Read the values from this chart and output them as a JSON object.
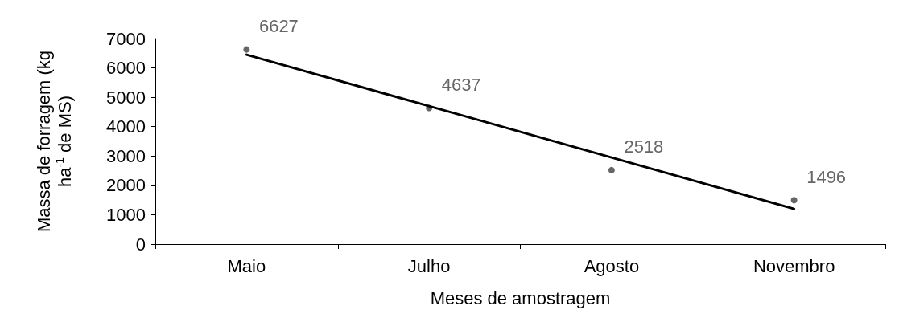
{
  "chart_data": {
    "type": "scatter",
    "xlabel": "Meses de amostragem",
    "ylabel": "Massa de forragem (kg ha$^{-1}$ de MS)",
    "categories": [
      "Maio",
      "Julho",
      "Agosto",
      "Novembro"
    ],
    "marker": "circle",
    "ylim": [
      0,
      7000
    ],
    "yticks": [
      0,
      1000,
      2000,
      3000,
      4000,
      5000,
      6000,
      7000
    ],
    "series": [
      {
        "color": "#404040",
        "values": [
          6627,
          4637,
          2518,
          1496
        ],
        "value_labels": [
          "6627",
          "4637",
          "2518",
          "1496"
        ]
      },
      {
        "type": "line",
        "marker": "none",
        "color": "#000000",
        "values": [
          6450,
          4700,
          2950,
          1200
        ]
      }
    ]
  }
}
